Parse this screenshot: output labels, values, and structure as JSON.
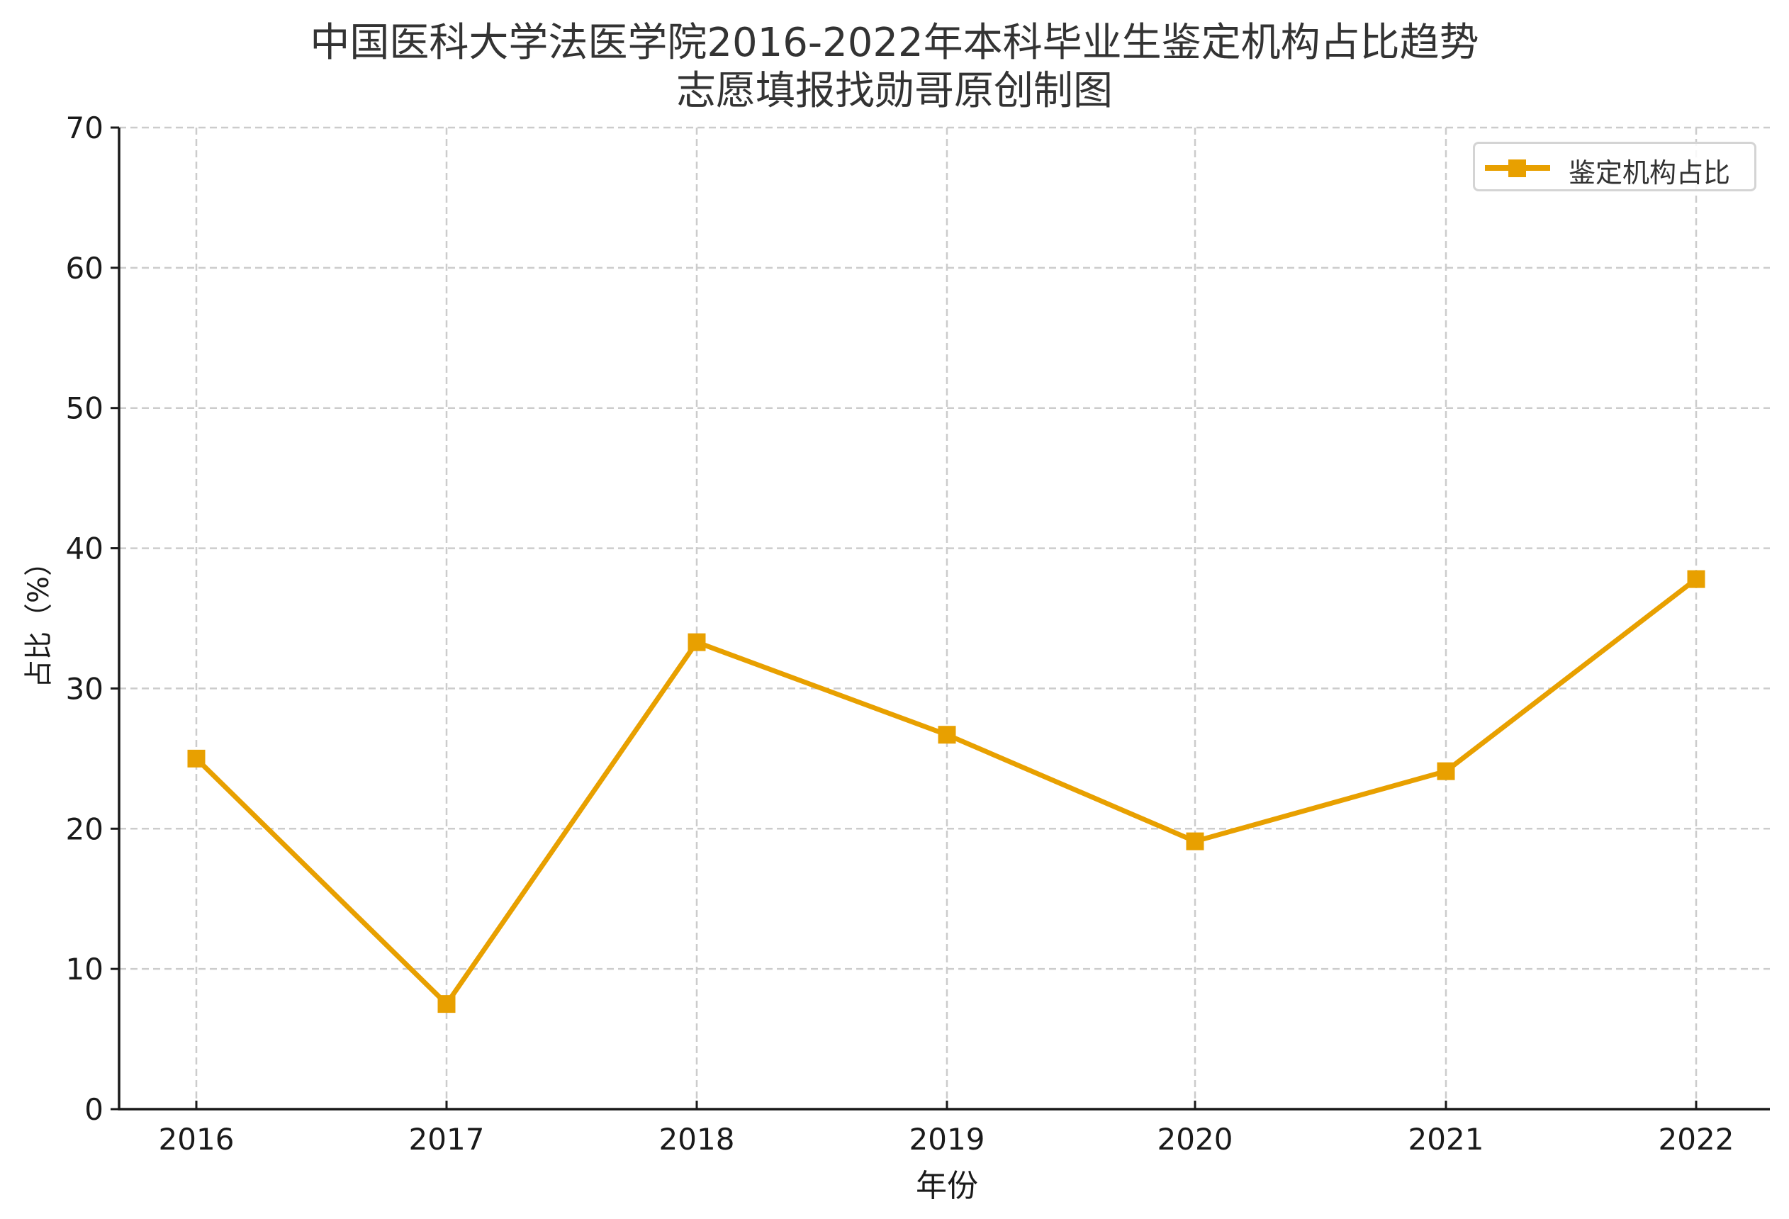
{
  "title": {
    "line1": "中国医科大学法医学院2016-2022年本科毕业生鉴定机构占比趋势",
    "line2": "志愿填报找勋哥原创制图"
  },
  "colors": {
    "series": "#E8A000",
    "grid": "#cccccc",
    "axis": "#1a1a1a",
    "legend_border": "#d4d4d4"
  },
  "legend": {
    "label": "鉴定机构占比",
    "position": "upper right"
  },
  "axes": {
    "xlabel": "年份",
    "ylabel": "占比（%）"
  },
  "chart_data": {
    "type": "line",
    "title": "中国医科大学法医学院2016-2022年本科毕业生鉴定机构占比趋势\n志愿填报找勋哥原创制图",
    "xlabel": "年份",
    "ylabel": "占比（%）",
    "categories": [
      "2016",
      "2017",
      "2018",
      "2019",
      "2020",
      "2021",
      "2022"
    ],
    "series": [
      {
        "name": "鉴定机构占比",
        "values": [
          25.0,
          7.5,
          33.3,
          26.7,
          19.1,
          24.1,
          37.8
        ],
        "marker": "square",
        "color": "#E8A000"
      }
    ],
    "ylim": [
      0,
      70
    ],
    "yticks": [
      0,
      10,
      20,
      30,
      40,
      50,
      60,
      70
    ],
    "grid": true,
    "grid_style": "dashed",
    "legend_position": "upper right"
  }
}
